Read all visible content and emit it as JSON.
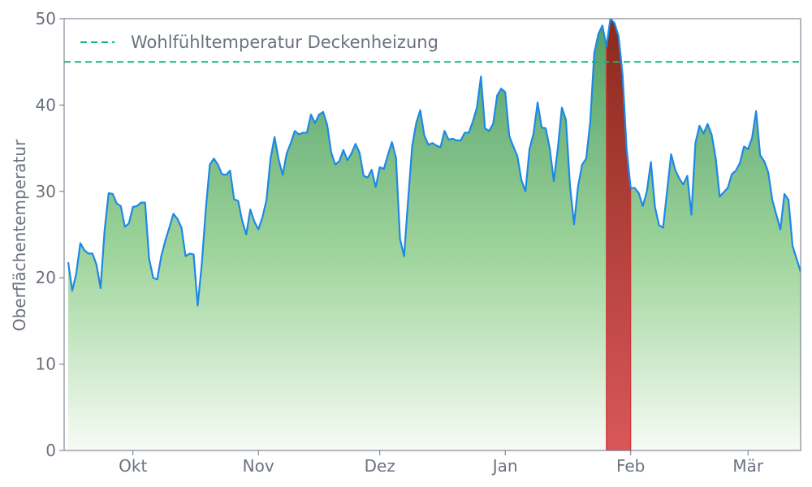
{
  "chart_data": {
    "type": "area",
    "ylabel": "Oberflächentemperatur",
    "ylim": [
      0,
      50
    ],
    "y_ticks": [
      "0",
      "10",
      "20",
      "30",
      "40",
      "50"
    ],
    "x_range": [
      "2023-09-14",
      "2024-03-14"
    ],
    "x_ticks": [
      {
        "label": "Okt",
        "date": "2023-10-01"
      },
      {
        "label": "Nov",
        "date": "2023-11-01"
      },
      {
        "label": "Dez",
        "date": "2023-12-01"
      },
      {
        "label": "Jan",
        "date": "2024-01-01"
      },
      {
        "label": "Feb",
        "date": "2024-02-01"
      },
      {
        "label": "Mär",
        "date": "2024-03-01"
      }
    ],
    "grid": false,
    "legend_position": "top-left",
    "threshold": {
      "name": "Wohlfühltemperatur Deckenheizung",
      "value": 45,
      "color": "#10b981",
      "style": "dashed"
    },
    "highlight_range": {
      "from": "2024-01-26",
      "to": "2024-02-01",
      "color": "#b91c1c"
    },
    "colors": {
      "line": "#1e88e5",
      "fill_top": "#4f9e68",
      "fill_bottom": "#f7fbf5",
      "axis": "#6b7280"
    },
    "start_date": "2023-09-15",
    "values": [
      21.8,
      18.5,
      20.5,
      24.0,
      23.2,
      22.8,
      22.8,
      21.5,
      18.8,
      25.5,
      29.8,
      29.7,
      28.6,
      28.3,
      25.9,
      26.3,
      28.2,
      28.3,
      28.7,
      28.7,
      22.2,
      20.0,
      19.8,
      22.5,
      24.3,
      25.8,
      27.4,
      26.8,
      25.8,
      22.5,
      22.8,
      22.7,
      16.8,
      21.5,
      27.9,
      33.1,
      33.8,
      33.1,
      32.0,
      31.9,
      32.4,
      29.1,
      28.9,
      26.6,
      25.0,
      27.9,
      26.5,
      25.6,
      27.0,
      29.0,
      33.8,
      36.3,
      33.7,
      31.9,
      34.4,
      35.6,
      37.0,
      36.6,
      36.8,
      36.8,
      38.9,
      37.9,
      38.9,
      39.2,
      37.7,
      34.5,
      33.1,
      33.5,
      34.8,
      33.6,
      34.4,
      35.5,
      34.5,
      31.8,
      31.6,
      32.5,
      30.5,
      32.8,
      32.6,
      34.2,
      35.7,
      33.9,
      24.5,
      22.5,
      29.0,
      35.2,
      37.9,
      39.4,
      36.5,
      35.4,
      35.6,
      35.3,
      35.1,
      37.0,
      36.0,
      36.1,
      35.9,
      35.9,
      36.8,
      36.8,
      38.1,
      39.7,
      43.3,
      37.3,
      37.0,
      37.8,
      41.1,
      41.9,
      41.5,
      36.4,
      35.2,
      34.1,
      31.3,
      30.0,
      34.9,
      36.7,
      40.3,
      37.4,
      37.3,
      35.0,
      31.2,
      35.0,
      39.7,
      38.3,
      30.7,
      26.2,
      30.6,
      33.1,
      33.8,
      38.0,
      46.0,
      48.2,
      49.2,
      46.8,
      50.0,
      49.5,
      48.0,
      43.5,
      34.9,
      30.4,
      30.4,
      29.8,
      28.3,
      30.0,
      33.4,
      28.2,
      26.1,
      25.8,
      30.0,
      34.3,
      32.5,
      31.5,
      30.8,
      31.8,
      27.3,
      35.6,
      37.6,
      36.7,
      37.8,
      36.6,
      33.9,
      29.4,
      29.9,
      30.4,
      32.0,
      32.4,
      33.3,
      35.2,
      34.9,
      36.2,
      39.3,
      34.2,
      33.5,
      32.2,
      29.0,
      27.3,
      25.6,
      29.7,
      29.0,
      23.7,
      22.2,
      20.7
    ]
  }
}
